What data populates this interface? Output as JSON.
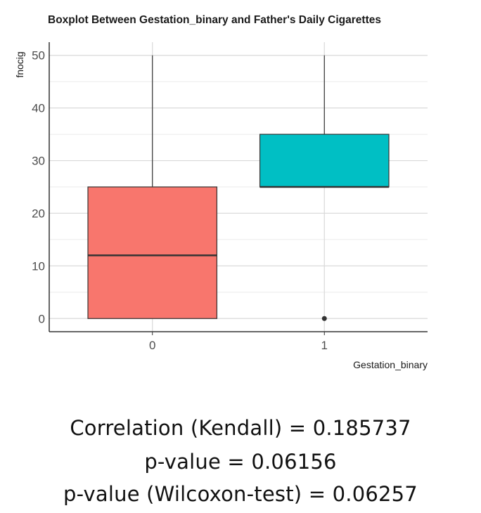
{
  "chart_data": {
    "type": "boxplot",
    "title": "Boxplot Between Gestation_binary and Father's Daily Cigarettes",
    "xlabel": "Gestation_binary",
    "ylabel": "fnocig",
    "categories": [
      "0",
      "1"
    ],
    "boxes": [
      {
        "category": "0",
        "whisker_low": 0,
        "q1": 0,
        "median": 12,
        "q3": 25,
        "whisker_high": 50,
        "outliers": [],
        "fill": "#F8766D"
      },
      {
        "category": "1",
        "whisker_low": 25,
        "q1": 25,
        "median": 25,
        "q3": 35,
        "whisker_high": 50,
        "outliers": [
          0
        ],
        "fill": "#00BFC4"
      }
    ],
    "yticks": [
      "0",
      "10",
      "20",
      "30",
      "40",
      "50"
    ],
    "ylim": [
      -2.5,
      52.5
    ],
    "grid": true
  },
  "stats": {
    "line1": "Correlation (Kendall) = 0.185737",
    "line2": "p-value = 0.06156",
    "line3": "p-value (Wilcoxon-test) = 0.06257"
  }
}
